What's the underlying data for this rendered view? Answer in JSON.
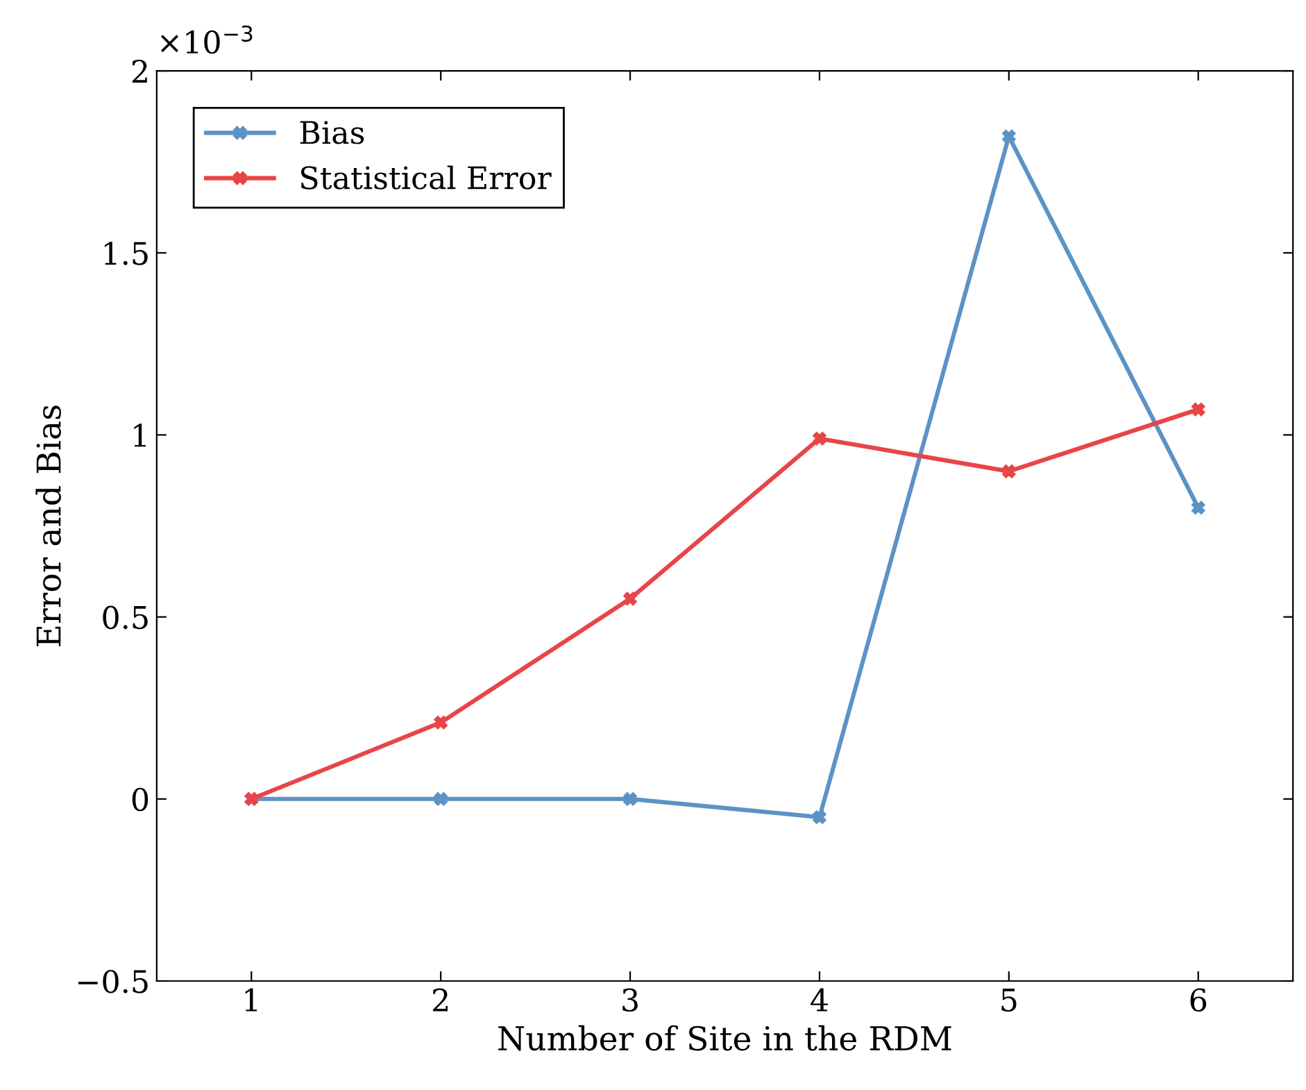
{
  "chart_data": {
    "type": "line",
    "xlabel": "Number of Site in the RDM",
    "ylabel": "Error and Bias",
    "annotations": [
      "×10$^{−3}$"
    ],
    "x": [
      1,
      2,
      3,
      4,
      5,
      6
    ],
    "series": [
      {
        "name": "Bias",
        "color": "#5b93c4",
        "values": [
          0,
          0,
          0,
          -0.05,
          1.82,
          0.8
        ]
      },
      {
        "name": "Statistical Error",
        "color": "#e84548",
        "values": [
          0,
          0.21,
          0.55,
          0.99,
          0.9,
          1.07
        ]
      }
    ],
    "xlim": [
      0.5,
      6.5
    ],
    "xticks": [
      1,
      2,
      3,
      4,
      5,
      6
    ],
    "ylim": [
      -0.5,
      2
    ],
    "yticks": [
      {
        "value": -0.5,
        "label": "−0.5"
      },
      0,
      0.5,
      1,
      1.5,
      2
    ],
    "grid": false,
    "legend": "top left",
    "marker": "cross",
    "line_style": "solid"
  }
}
